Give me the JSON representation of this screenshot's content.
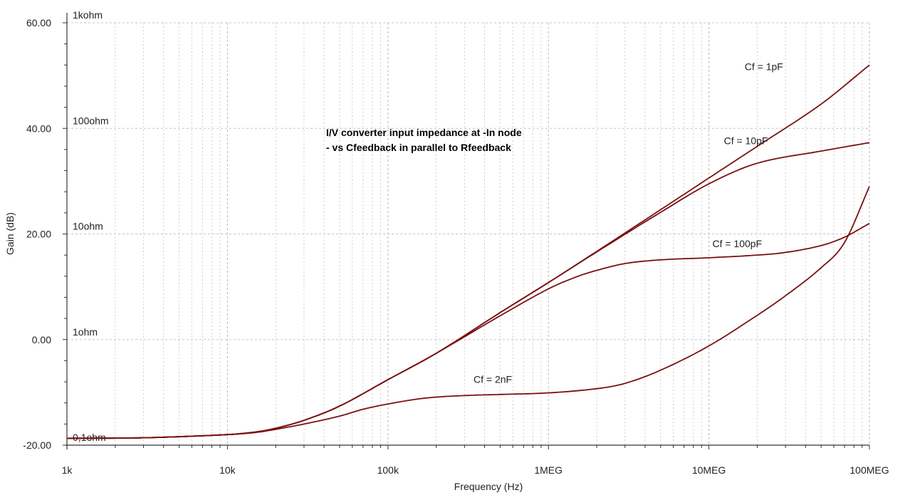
{
  "chart_data": {
    "type": "line",
    "title": "",
    "xlabel": "Frequency (Hz)",
    "ylabel": "Gain (dB)",
    "x_scale": "log",
    "xlim": [
      1000,
      100000000
    ],
    "ylim": [
      -20,
      60
    ],
    "grid": true,
    "x_tick_values": [
      1000,
      10000,
      100000,
      1000000,
      10000000,
      100000000
    ],
    "x_tick_labels": [
      "1k",
      "10k",
      "100k",
      "1MEG",
      "10MEG",
      "100MEG"
    ],
    "y_tick_values": [
      -20,
      0,
      20,
      40,
      60
    ],
    "y_tick_labels": [
      "-20.00",
      "0.00",
      "20.00",
      "40.00",
      "60.00"
    ],
    "impedance_labels": [
      {
        "text": "1kohm",
        "y": 60
      },
      {
        "text": "100ohm",
        "y": 40
      },
      {
        "text": "10ohm",
        "y": 20
      },
      {
        "text": "1ohm",
        "y": 0
      },
      {
        "text": "0,1ohm",
        "y": -20
      }
    ],
    "annotation": [
      "I/V converter input impedance at -In node",
      "- vs Cfeedback in parallel to Rfeedback"
    ],
    "line_color": "#7a1010",
    "series": [
      {
        "name": "Cf = 1pF",
        "label_at": [
          22000000.0,
          51
        ],
        "x": [
          1000,
          3000,
          10000,
          15000,
          20000,
          30000,
          50000,
          100000,
          200000,
          500000,
          1000000,
          2000000,
          5000000,
          10000000,
          20000000,
          50000000,
          100000000
        ],
        "y": [
          -18.7,
          -18.6,
          -18.0,
          -17.5,
          -16.8,
          -15.3,
          -12.6,
          -7.6,
          -2.6,
          5.1,
          10.8,
          16.7,
          24.6,
          30.6,
          36.6,
          44.6,
          52.0
        ]
      },
      {
        "name": "Cf = 10pF",
        "label_at": [
          17000000.0,
          37
        ],
        "x": [
          1000,
          3000,
          10000,
          15000,
          20000,
          30000,
          50000,
          100000,
          200000,
          500000,
          1000000,
          2000000,
          5000000,
          10000000,
          20000000,
          50000000,
          100000000
        ],
        "y": [
          -18.7,
          -18.6,
          -18.0,
          -17.5,
          -16.8,
          -15.3,
          -12.6,
          -7.6,
          -2.6,
          5.1,
          10.8,
          16.6,
          24.1,
          29.5,
          33.4,
          35.7,
          37.3
        ]
      },
      {
        "name": "Cf = 100pF",
        "label_at": [
          15000000.0,
          17.5
        ],
        "x": [
          1000,
          3000,
          10000,
          15000,
          20000,
          30000,
          50000,
          100000,
          200000,
          500000,
          1000000,
          1500000,
          2000000,
          3000000,
          5000000,
          10000000,
          20000000,
          30000000,
          50000000,
          70000000,
          100000000
        ],
        "y": [
          -18.7,
          -18.6,
          -18.0,
          -17.5,
          -16.8,
          -15.3,
          -12.6,
          -7.6,
          -2.6,
          4.5,
          9.6,
          11.9,
          13.1,
          14.4,
          15.1,
          15.5,
          16.0,
          16.5,
          17.8,
          19.4,
          22.0
        ]
      },
      {
        "name": "Cf = 2nF",
        "label_at": [
          450000,
          -8.2
        ],
        "x": [
          1000,
          3000,
          10000,
          15000,
          20000,
          30000,
          50000,
          70000,
          100000,
          150000,
          200000,
          300000,
          500000,
          1000000,
          2000000,
          3000000,
          5000000,
          10000000,
          20000000,
          30000000,
          50000000,
          70000000,
          100000000
        ],
        "y": [
          -18.7,
          -18.6,
          -18.0,
          -17.6,
          -17.0,
          -16.0,
          -14.5,
          -13.2,
          -12.2,
          -11.3,
          -10.9,
          -10.6,
          -10.4,
          -10.1,
          -9.3,
          -8.3,
          -5.8,
          -1.2,
          4.6,
          8.3,
          13.6,
          18.4,
          29.0
        ]
      }
    ]
  }
}
